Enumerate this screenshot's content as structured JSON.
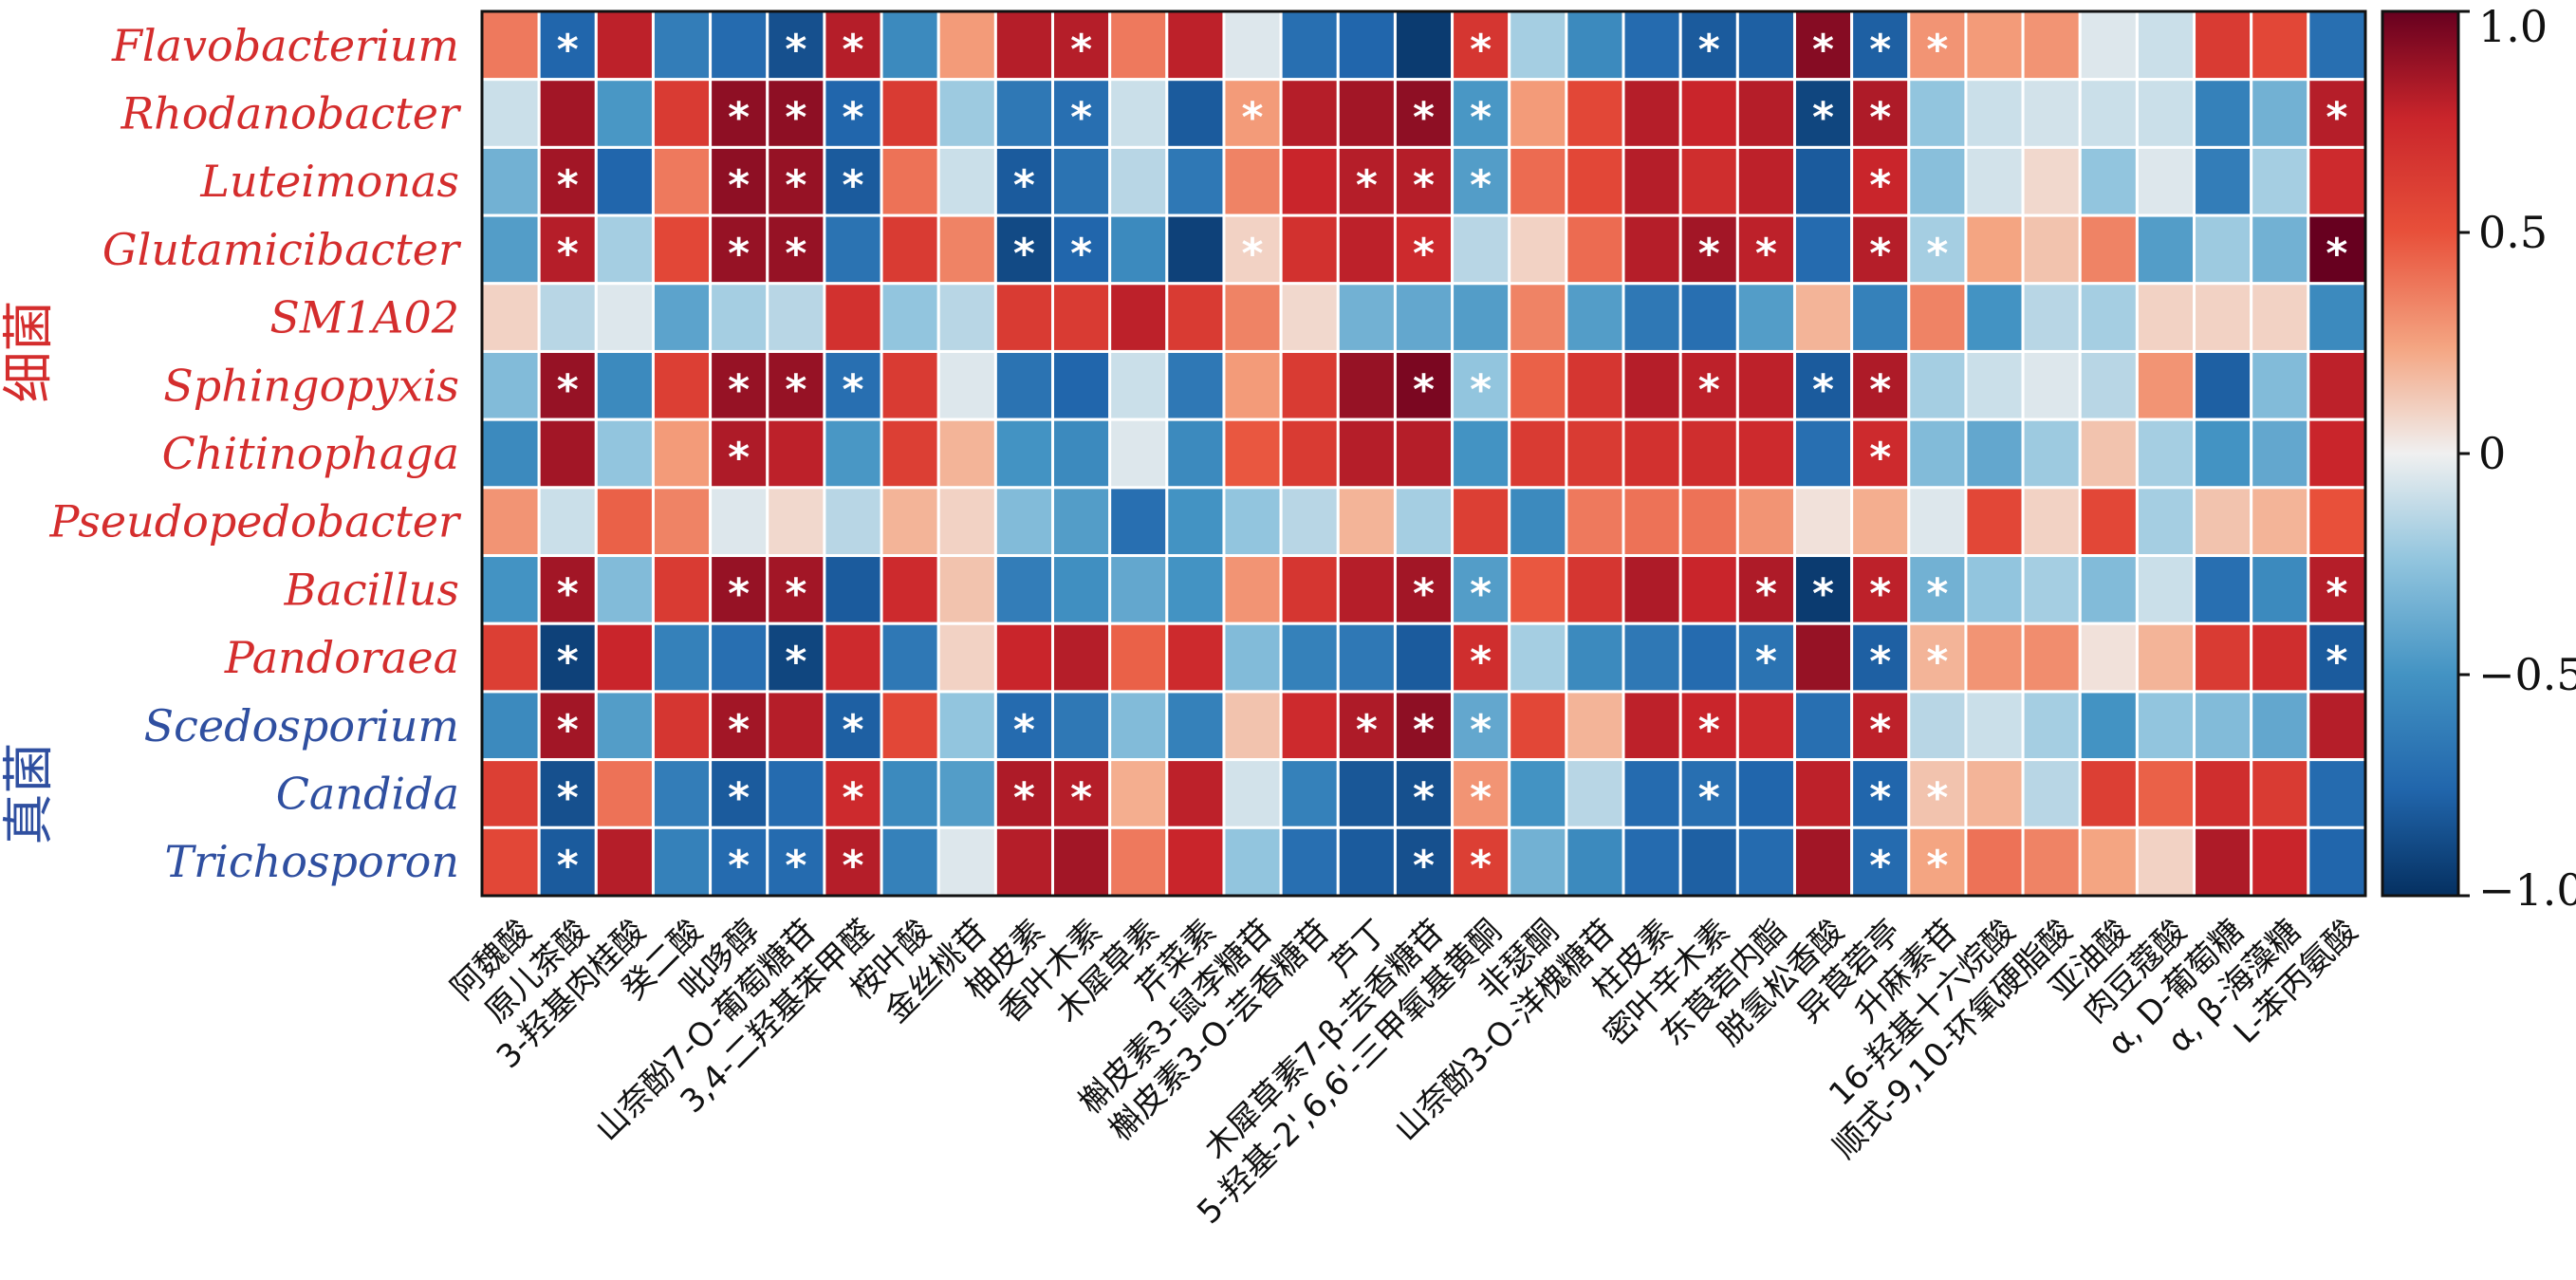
{
  "chart_data": {
    "type": "heatmap",
    "rows": [
      {
        "name": "Flavobacterium",
        "group": "bacteria"
      },
      {
        "name": "Rhodanobacter",
        "group": "bacteria"
      },
      {
        "name": "Luteimonas",
        "group": "bacteria"
      },
      {
        "name": "Glutamicibacter",
        "group": "bacteria"
      },
      {
        "name": "SM1A02",
        "group": "bacteria"
      },
      {
        "name": "Sphingopyxis",
        "group": "bacteria"
      },
      {
        "name": "Chitinophaga",
        "group": "bacteria"
      },
      {
        "name": "Pseudopedobacter",
        "group": "bacteria"
      },
      {
        "name": "Bacillus",
        "group": "bacteria"
      },
      {
        "name": "Pandoraea",
        "group": "bacteria"
      },
      {
        "name": "Scedosporium",
        "group": "fungi"
      },
      {
        "name": "Candida",
        "group": "fungi"
      },
      {
        "name": "Trichosporon",
        "group": "fungi"
      }
    ],
    "groups": {
      "bacteria": {
        "label": "细菌",
        "color": "#d42d2d"
      },
      "fungi": {
        "label": "真菌",
        "color": "#2f4fa0"
      }
    },
    "columns": [
      "阿魏酸",
      "原儿茶酸",
      "3-羟基肉桂酸",
      "癸二酸",
      "吡哆醇",
      "山奈酚7-O-葡萄糖苷",
      "3,4-二羟基苯甲醛",
      "桉叶酸",
      "金丝桃苷",
      "柚皮素",
      "香叶木素",
      "木犀草素",
      "芹菜素",
      "槲皮素3-鼠李糖苷",
      "槲皮素3-O-芸香糖苷",
      "芦丁",
      "木犀草素7-β-芸香糖苷",
      "5-羟基-2',6,6'-三甲氧基黄酮",
      "非瑟酮",
      "山奈酚3-O-洋槐糖苷",
      "柱皮素",
      "密叶辛木素",
      "东莨菪内酯",
      "脱氢松香酸",
      "异莨菪亭",
      "升麻素苷",
      "16-羟基十六烷酸",
      "顺式-9,10-环氧硬脂酸",
      "亚油酸",
      "肉豆蔻酸",
      "α, D-葡萄糖",
      "α, β-海藻糖",
      "L-苯丙氨酸"
    ],
    "values": [
      [
        0.38,
        -0.75,
        0.78,
        -0.62,
        -0.72,
        -0.85,
        0.8,
        -0.55,
        0.28,
        0.8,
        0.8,
        0.38,
        0.78,
        -0.05,
        -0.7,
        -0.75,
        -0.95,
        0.65,
        -0.2,
        -0.55,
        -0.72,
        -0.8,
        -0.78,
        0.92,
        -0.78,
        0.3,
        0.28,
        0.3,
        -0.05,
        -0.1,
        0.62,
        0.55,
        -0.7
      ],
      [
        -0.1,
        0.85,
        -0.48,
        0.62,
        0.9,
        0.9,
        -0.75,
        0.62,
        -0.22,
        -0.65,
        -0.7,
        -0.1,
        -0.8,
        0.28,
        0.8,
        0.85,
        0.9,
        -0.48,
        0.28,
        0.55,
        0.8,
        0.75,
        0.8,
        -0.9,
        0.82,
        -0.25,
        -0.1,
        -0.08,
        -0.1,
        -0.1,
        -0.6,
        -0.35,
        0.8
      ],
      [
        -0.35,
        0.85,
        -0.75,
        0.38,
        0.9,
        0.88,
        -0.8,
        0.4,
        -0.1,
        -0.8,
        -0.68,
        -0.15,
        -0.65,
        0.35,
        0.75,
        0.8,
        0.8,
        -0.45,
        0.42,
        0.55,
        0.8,
        0.7,
        0.78,
        -0.8,
        0.75,
        -0.28,
        -0.08,
        0.08,
        -0.25,
        -0.05,
        -0.62,
        -0.2,
        0.72
      ],
      [
        -0.45,
        0.8,
        -0.2,
        0.55,
        0.88,
        0.88,
        -0.68,
        0.62,
        0.35,
        -0.88,
        -0.75,
        -0.55,
        -0.92,
        0.1,
        0.68,
        0.78,
        0.72,
        -0.15,
        0.1,
        0.42,
        0.8,
        0.85,
        0.78,
        -0.72,
        0.8,
        -0.2,
        0.25,
        0.15,
        0.35,
        -0.45,
        -0.22,
        -0.35,
        1.0
      ],
      [
        0.1,
        -0.15,
        -0.05,
        -0.42,
        -0.2,
        -0.15,
        0.68,
        -0.25,
        -0.15,
        0.62,
        0.62,
        0.78,
        0.62,
        0.35,
        0.08,
        -0.35,
        -0.4,
        -0.45,
        0.35,
        -0.45,
        -0.65,
        -0.7,
        -0.45,
        0.2,
        -0.6,
        0.35,
        -0.5,
        -0.15,
        -0.2,
        0.1,
        0.1,
        0.1,
        -0.55
      ],
      [
        -0.3,
        0.88,
        -0.55,
        0.6,
        0.88,
        0.88,
        -0.7,
        0.62,
        -0.05,
        -0.68,
        -0.75,
        -0.1,
        -0.65,
        0.28,
        0.62,
        0.88,
        0.95,
        -0.25,
        0.45,
        0.65,
        0.8,
        0.78,
        0.78,
        -0.8,
        0.82,
        -0.2,
        -0.1,
        -0.05,
        -0.15,
        0.3,
        -0.78,
        -0.3,
        0.78
      ],
      [
        -0.55,
        0.85,
        -0.25,
        0.28,
        0.82,
        0.78,
        -0.48,
        0.6,
        0.2,
        -0.5,
        -0.55,
        -0.05,
        -0.55,
        0.48,
        0.62,
        0.8,
        0.8,
        -0.5,
        0.62,
        0.62,
        0.68,
        0.7,
        0.72,
        -0.7,
        0.72,
        -0.3,
        -0.4,
        -0.22,
        0.15,
        -0.2,
        -0.5,
        -0.4,
        0.75
      ],
      [
        0.3,
        -0.1,
        0.45,
        0.35,
        -0.05,
        0.08,
        -0.15,
        0.2,
        0.1,
        -0.3,
        -0.45,
        -0.7,
        -0.5,
        -0.25,
        -0.15,
        0.2,
        -0.2,
        0.6,
        -0.55,
        0.38,
        0.4,
        0.4,
        0.3,
        0.05,
        0.22,
        -0.05,
        0.55,
        0.1,
        0.55,
        -0.2,
        0.15,
        0.2,
        0.5
      ],
      [
        -0.5,
        0.85,
        -0.3,
        0.62,
        0.88,
        0.85,
        -0.8,
        0.72,
        0.15,
        -0.62,
        -0.52,
        -0.4,
        -0.5,
        0.3,
        0.65,
        0.8,
        0.85,
        -0.45,
        0.48,
        0.65,
        0.82,
        0.75,
        0.82,
        -0.95,
        0.78,
        -0.35,
        -0.25,
        -0.2,
        -0.3,
        -0.1,
        -0.7,
        -0.55,
        0.8
      ],
      [
        0.6,
        -0.92,
        0.75,
        -0.6,
        -0.7,
        -0.9,
        0.72,
        -0.65,
        0.1,
        0.75,
        0.8,
        0.45,
        0.72,
        -0.3,
        -0.6,
        -0.65,
        -0.8,
        0.7,
        -0.2,
        -0.55,
        -0.65,
        -0.72,
        -0.68,
        0.88,
        -0.78,
        0.2,
        0.3,
        0.32,
        0.05,
        0.2,
        0.62,
        0.7,
        -0.8
      ],
      [
        -0.55,
        0.85,
        -0.45,
        0.65,
        0.85,
        0.8,
        -0.78,
        0.55,
        -0.25,
        -0.72,
        -0.65,
        -0.3,
        -0.6,
        0.15,
        0.72,
        0.82,
        0.9,
        -0.4,
        0.55,
        0.2,
        0.78,
        0.75,
        0.72,
        -0.7,
        0.78,
        -0.15,
        -0.1,
        -0.2,
        -0.5,
        -0.25,
        -0.3,
        -0.4,
        0.8
      ],
      [
        0.6,
        -0.85,
        0.4,
        -0.62,
        -0.8,
        -0.72,
        0.72,
        -0.55,
        -0.45,
        0.82,
        0.8,
        0.22,
        0.78,
        -0.08,
        -0.6,
        -0.82,
        -0.85,
        0.3,
        -0.5,
        -0.15,
        -0.72,
        -0.7,
        -0.75,
        0.78,
        -0.75,
        0.15,
        0.2,
        -0.15,
        0.6,
        0.45,
        0.7,
        0.62,
        -0.72
      ],
      [
        0.55,
        -0.8,
        0.8,
        -0.6,
        -0.72,
        -0.72,
        0.8,
        -0.6,
        -0.05,
        0.8,
        0.85,
        0.38,
        0.75,
        -0.25,
        -0.7,
        -0.8,
        -0.85,
        0.6,
        -0.35,
        -0.55,
        -0.72,
        -0.78,
        -0.72,
        0.85,
        -0.72,
        0.25,
        0.4,
        0.35,
        0.25,
        0.1,
        0.82,
        0.75,
        -0.75
      ]
    ],
    "significance": [
      [
        1,
        5,
        6,
        10,
        17,
        21,
        23,
        24,
        25
      ],
      [
        4,
        5,
        6,
        10,
        13,
        16,
        17,
        23,
        24,
        32
      ],
      [
        1,
        4,
        5,
        6,
        9,
        15,
        16,
        17,
        24
      ],
      [
        1,
        4,
        5,
        9,
        10,
        13,
        16,
        21,
        22,
        24,
        25,
        32
      ],
      [],
      [
        1,
        4,
        5,
        6,
        16,
        17,
        21,
        23,
        24
      ],
      [
        4,
        24
      ],
      [],
      [
        1,
        4,
        5,
        16,
        17,
        22,
        23,
        24,
        25,
        32
      ],
      [
        1,
        5,
        17,
        22,
        24,
        25,
        32
      ],
      [
        1,
        4,
        6,
        9,
        15,
        16,
        17,
        21,
        24
      ],
      [
        1,
        4,
        6,
        9,
        10,
        16,
        17,
        21,
        24,
        25
      ],
      [
        1,
        4,
        5,
        6,
        16,
        17,
        24,
        25
      ]
    ],
    "significance_marker": "*",
    "colorbar": {
      "range": [
        -1.0,
        1.0
      ],
      "ticks": [
        1.0,
        0.5,
        0,
        -0.5,
        -1.0
      ],
      "tick_labels": [
        "1.0",
        "0.5",
        "0",
        "−0.5",
        "−1.0"
      ]
    }
  }
}
